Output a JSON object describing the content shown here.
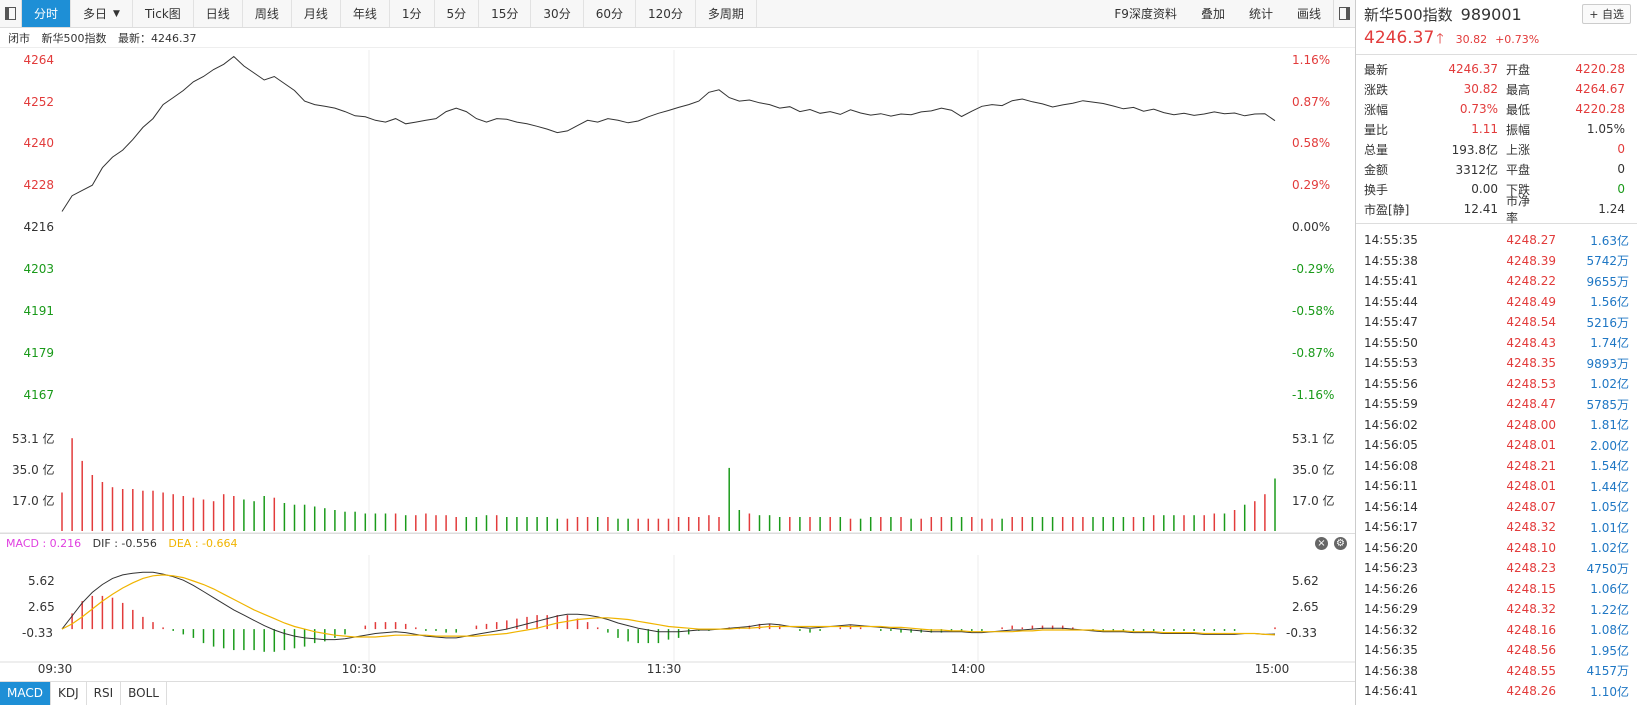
{
  "toolbar": {
    "tabs": [
      "分时",
      "多日",
      "Tick图",
      "日线",
      "周线",
      "月线",
      "年线",
      "1分",
      "5分",
      "15分",
      "30分",
      "60分",
      "120分",
      "多周期"
    ],
    "right_tabs": [
      "F9深度资料",
      "叠加",
      "统计",
      "画线"
    ]
  },
  "infoline": {
    "status": "闭市",
    "name": "新华500指数",
    "latest": "最新：4246.37"
  },
  "price_axis": {
    "left": [
      "4264",
      "4252",
      "4240",
      "4228",
      "4216",
      "4203",
      "4191",
      "4179",
      "4167"
    ],
    "right": [
      "1.16%",
      "0.87%",
      "0.58%",
      "0.29%",
      "0.00%",
      "-0.29%",
      "-0.58%",
      "-0.87%",
      "-1.16%"
    ]
  },
  "volume_axis": {
    "labels": [
      "53.1 亿",
      "35.0 亿",
      "17.0 亿"
    ]
  },
  "macd_axis": {
    "labels": [
      "5.62",
      "2.65",
      "-0.33"
    ]
  },
  "time_axis": {
    "labels": [
      "09:30",
      "10:30",
      "11:30",
      "14:00",
      "15:00"
    ]
  },
  "macd_bar": {
    "macd": "MACD : 0.216",
    "dif": "DIF : -0.556",
    "dea": "DEA : -0.664"
  },
  "indicator_tabs": [
    "MACD",
    "KDJ",
    "RSI",
    "BOLL"
  ],
  "colors": {
    "up": "#e23b3b",
    "down": "#1a9a1a",
    "price_line": "#333333",
    "dea": "#f0b400",
    "dif": "#333333",
    "macd": "#e040e0",
    "accent": "#1e8fd6"
  },
  "chart_data": {
    "type": "line",
    "price_x": [
      0,
      2,
      4,
      6,
      8,
      10,
      12,
      14,
      16,
      18,
      20,
      22,
      24,
      26,
      28,
      30,
      32,
      34,
      36,
      38,
      40,
      42,
      44,
      46,
      48,
      50,
      52,
      54,
      56,
      58,
      60,
      62,
      64,
      66,
      68,
      70,
      72,
      74,
      76,
      78,
      80,
      82,
      84,
      86,
      88,
      90,
      92,
      94,
      96,
      98,
      100,
      102,
      104,
      106,
      108,
      110,
      112,
      114,
      116,
      118,
      120,
      122,
      124,
      126,
      128,
      130,
      132,
      134,
      136,
      138,
      140,
      142,
      144,
      146,
      148,
      150,
      152,
      154,
      156,
      158,
      160,
      162,
      164,
      166,
      168,
      170,
      172,
      174,
      176,
      178,
      180,
      182,
      184,
      186,
      188,
      190,
      192,
      194,
      196,
      198,
      200,
      202,
      204,
      206,
      208,
      210,
      212,
      214,
      216,
      218,
      220,
      222,
      224,
      226,
      228,
      230,
      232,
      234,
      236,
      238,
      240
    ],
    "price": [
      4220.5,
      4225,
      4226.5,
      4228,
      4233,
      4236,
      4238,
      4241,
      4244.5,
      4247,
      4251,
      4253,
      4255,
      4257.5,
      4259,
      4261,
      4262.5,
      4264.7,
      4262,
      4260,
      4258,
      4259,
      4257,
      4255,
      4252,
      4251,
      4250.5,
      4250,
      4249,
      4247.8,
      4247.5,
      4246.5,
      4246,
      4247,
      4245.5,
      4246,
      4246.5,
      4247,
      4249,
      4250,
      4249,
      4247,
      4246,
      4247,
      4246.8,
      4246,
      4245.5,
      4244.8,
      4244,
      4243,
      4243.5,
      4245,
      4246.5,
      4246,
      4247,
      4246.5,
      4245.8,
      4246.3,
      4247.5,
      4248.5,
      4249.3,
      4250.2,
      4251,
      4252,
      4254.5,
      4255.2,
      4253,
      4252,
      4252.3,
      4251.5,
      4251,
      4250,
      4250.4,
      4249,
      4249.6,
      4248.5,
      4249,
      4248.2,
      4249.5,
      4248.6,
      4248,
      4248.4,
      4247.7,
      4248.3,
      4248.1,
      4248.9,
      4249.2,
      4250,
      4249.4,
      4247.6,
      4249.1,
      4250.5,
      4251,
      4250.7,
      4252.1,
      4252.6,
      4251.8,
      4251.2,
      4250.3,
      4250.9,
      4251.4,
      4252.1,
      4251.7,
      4251.3,
      4250.6,
      4249.8,
      4250.2,
      4249.1,
      4249.7,
      4248.7,
      4248.1,
      4248.5,
      4247.9,
      4248.3,
      4248.9,
      4248.4,
      4248.6,
      4247.8,
      4248.3,
      4248.4,
      4246.4
    ],
    "volume": [
      22,
      53,
      40,
      32,
      28,
      25,
      24,
      24,
      23,
      23,
      22,
      21,
      20,
      19,
      18,
      17,
      21,
      20,
      18,
      17,
      20,
      19,
      16,
      15,
      15,
      14,
      13,
      12,
      11,
      11,
      10,
      10,
      10,
      10,
      9,
      9,
      10,
      9,
      9,
      8,
      8,
      8,
      9,
      9,
      8,
      8,
      8,
      8,
      8,
      7,
      7,
      8,
      8,
      8,
      8,
      7,
      7,
      7,
      7,
      7,
      7,
      8,
      8,
      8,
      9,
      8,
      36,
      12,
      10,
      9,
      9,
      8,
      8,
      8,
      8,
      8,
      8,
      8,
      7,
      7,
      8,
      8,
      8,
      8,
      7,
      7,
      8,
      8,
      8,
      8,
      8,
      7,
      7,
      7,
      8,
      8,
      8,
      8,
      8,
      8,
      8,
      8,
      8,
      8,
      8,
      8,
      8,
      8,
      9,
      9,
      9,
      9,
      9,
      9,
      10,
      10,
      12,
      15,
      17,
      21,
      30
    ],
    "dif": [
      0,
      1.5,
      3,
      4.2,
      5.1,
      5.8,
      6.2,
      6.4,
      6.5,
      6.5,
      6.3,
      6,
      5.6,
      5,
      4.3,
      3.6,
      2.9,
      2.2,
      1.6,
      1,
      0.4,
      -0.1,
      -0.5,
      -0.8,
      -1,
      -1.1,
      -1.2,
      -1.2,
      -1.1,
      -0.9,
      -0.7,
      -0.5,
      -0.4,
      -0.3,
      -0.4,
      -0.6,
      -0.8,
      -0.9,
      -1,
      -1,
      -0.8,
      -0.6,
      -0.4,
      -0.2,
      0,
      0.3,
      0.6,
      0.9,
      1.2,
      1.5,
      1.7,
      1.7,
      1.6,
      1.4,
      1.1,
      0.7,
      0.4,
      0.1,
      -0.1,
      -0.3,
      -0.3,
      -0.3,
      -0.2,
      -0.1,
      -0.1,
      0,
      0.1,
      0.2,
      0.3,
      0.5,
      0.6,
      0.5,
      0.3,
      0.2,
      0.1,
      0.2,
      0.3,
      0.4,
      0.5,
      0.4,
      0.3,
      0.2,
      0.1,
      0,
      -0.1,
      -0.2,
      -0.3,
      -0.3,
      -0.3,
      -0.3,
      -0.4,
      -0.4,
      -0.3,
      -0.2,
      -0.1,
      -0.1,
      0,
      0.1,
      0.1,
      0.1,
      0,
      -0.1,
      -0.2,
      -0.3,
      -0.3,
      -0.3,
      -0.4,
      -0.4,
      -0.4,
      -0.5,
      -0.5,
      -0.5,
      -0.5,
      -0.6,
      -0.6,
      -0.6,
      -0.6,
      -0.5,
      -0.5,
      -0.6,
      -0.56
    ],
    "dea": [
      0,
      0.6,
      1.4,
      2.3,
      3.2,
      4,
      4.7,
      5.3,
      5.8,
      6.1,
      6.2,
      6.1,
      5.9,
      5.5,
      5.1,
      4.6,
      4,
      3.4,
      2.8,
      2.2,
      1.7,
      1.2,
      0.7,
      0.3,
      0,
      -0.3,
      -0.5,
      -0.7,
      -0.8,
      -0.9,
      -0.9,
      -0.9,
      -0.8,
      -0.7,
      -0.7,
      -0.7,
      -0.7,
      -0.8,
      -0.8,
      -0.8,
      -0.8,
      -0.8,
      -0.7,
      -0.6,
      -0.5,
      -0.3,
      -0.1,
      0.1,
      0.4,
      0.7,
      0.9,
      1.1,
      1.2,
      1.3,
      1.3,
      1.2,
      1.1,
      0.9,
      0.7,
      0.5,
      0.3,
      0.2,
      0.1,
      0,
      0,
      0,
      0,
      0.1,
      0.1,
      0.2,
      0.3,
      0.3,
      0.3,
      0.3,
      0.3,
      0.3,
      0.3,
      0.3,
      0.3,
      0.3,
      0.3,
      0.3,
      0.2,
      0.2,
      0.1,
      0,
      -0.1,
      -0.1,
      -0.2,
      -0.2,
      -0.3,
      -0.3,
      -0.3,
      -0.3,
      -0.3,
      -0.2,
      -0.2,
      -0.1,
      -0.1,
      -0.1,
      -0.1,
      -0.1,
      -0.1,
      -0.2,
      -0.2,
      -0.2,
      -0.3,
      -0.3,
      -0.3,
      -0.4,
      -0.4,
      -0.4,
      -0.4,
      -0.5,
      -0.5,
      -0.5,
      -0.5,
      -0.5,
      -0.5,
      -0.6,
      -0.66
    ]
  },
  "side": {
    "name": "新华500指数",
    "code": "989001",
    "fav": "+ 自选",
    "price": "4246.37",
    "change": "30.82",
    "change_pct": "+0.73%",
    "stats": [
      {
        "l1": "最新",
        "v1": "4246.37",
        "c1": "red",
        "l2": "开盘",
        "v2": "4220.28",
        "c2": "red"
      },
      {
        "l1": "涨跌",
        "v1": "30.82",
        "c1": "red",
        "l2": "最高",
        "v2": "4264.67",
        "c2": "red"
      },
      {
        "l1": "涨幅",
        "v1": "0.73%",
        "c1": "red",
        "l2": "最低",
        "v2": "4220.28",
        "c2": "red"
      },
      {
        "l1": "量比",
        "v1": "1.11",
        "c1": "red",
        "l2": "振幅",
        "v2": "1.05%",
        "c2": ""
      },
      {
        "l1": "总量",
        "v1": "193.8亿",
        "c1": "",
        "l2": "上涨",
        "v2": "0",
        "c2": "red"
      },
      {
        "l1": "金额",
        "v1": "3312亿",
        "c1": "",
        "l2": "平盘",
        "v2": "0",
        "c2": ""
      },
      {
        "l1": "换手",
        "v1": "0.00",
        "c1": "",
        "l2": "下跌",
        "v2": "0",
        "c2": "green"
      },
      {
        "l1": "市盈[静]",
        "v1": "12.41",
        "c1": "",
        "l2": "市净率",
        "v2": "1.24",
        "c2": ""
      }
    ],
    "ticks": [
      {
        "t": "14:55:35",
        "p": "4248.27",
        "v": "1.63亿"
      },
      {
        "t": "14:55:38",
        "p": "4248.39",
        "v": "5742万"
      },
      {
        "t": "14:55:41",
        "p": "4248.22",
        "v": "9655万"
      },
      {
        "t": "14:55:44",
        "p": "4248.49",
        "v": "1.56亿"
      },
      {
        "t": "14:55:47",
        "p": "4248.54",
        "v": "5216万"
      },
      {
        "t": "14:55:50",
        "p": "4248.43",
        "v": "1.74亿"
      },
      {
        "t": "14:55:53",
        "p": "4248.35",
        "v": "9893万"
      },
      {
        "t": "14:55:56",
        "p": "4248.53",
        "v": "1.02亿"
      },
      {
        "t": "14:55:59",
        "p": "4248.47",
        "v": "5785万"
      },
      {
        "t": "14:56:02",
        "p": "4248.00",
        "v": "1.81亿"
      },
      {
        "t": "14:56:05",
        "p": "4248.01",
        "v": "2.00亿"
      },
      {
        "t": "14:56:08",
        "p": "4248.21",
        "v": "1.54亿"
      },
      {
        "t": "14:56:11",
        "p": "4248.01",
        "v": "1.44亿"
      },
      {
        "t": "14:56:14",
        "p": "4248.07",
        "v": "1.05亿"
      },
      {
        "t": "14:56:17",
        "p": "4248.32",
        "v": "1.01亿"
      },
      {
        "t": "14:56:20",
        "p": "4248.10",
        "v": "1.02亿"
      },
      {
        "t": "14:56:23",
        "p": "4248.23",
        "v": "4750万"
      },
      {
        "t": "14:56:26",
        "p": "4248.15",
        "v": "1.06亿"
      },
      {
        "t": "14:56:29",
        "p": "4248.32",
        "v": "1.22亿"
      },
      {
        "t": "14:56:32",
        "p": "4248.16",
        "v": "1.08亿"
      },
      {
        "t": "14:56:35",
        "p": "4248.56",
        "v": "1.95亿"
      },
      {
        "t": "14:56:38",
        "p": "4248.55",
        "v": "4157万"
      },
      {
        "t": "14:56:41",
        "p": "4248.26",
        "v": "1.10亿"
      }
    ]
  }
}
